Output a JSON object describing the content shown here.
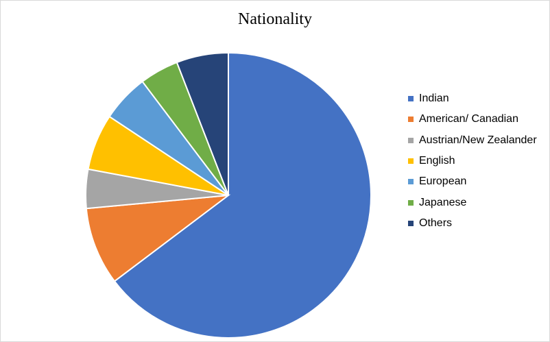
{
  "chart_data": {
    "type": "pie",
    "title": "Nationality",
    "legend_position": "right",
    "categories": [
      "Indian",
      "American/ Canadian",
      "Austrian/New Zealander",
      "English",
      "European",
      "Japanese",
      "Others"
    ],
    "values": [
      66,
      9,
      4.5,
      6.5,
      5.5,
      4.5,
      6
    ],
    "colors": [
      "#4472c4",
      "#ed7d31",
      "#a5a5a5",
      "#ffc000",
      "#5b9bd5",
      "#70ad47",
      "#264478"
    ]
  }
}
